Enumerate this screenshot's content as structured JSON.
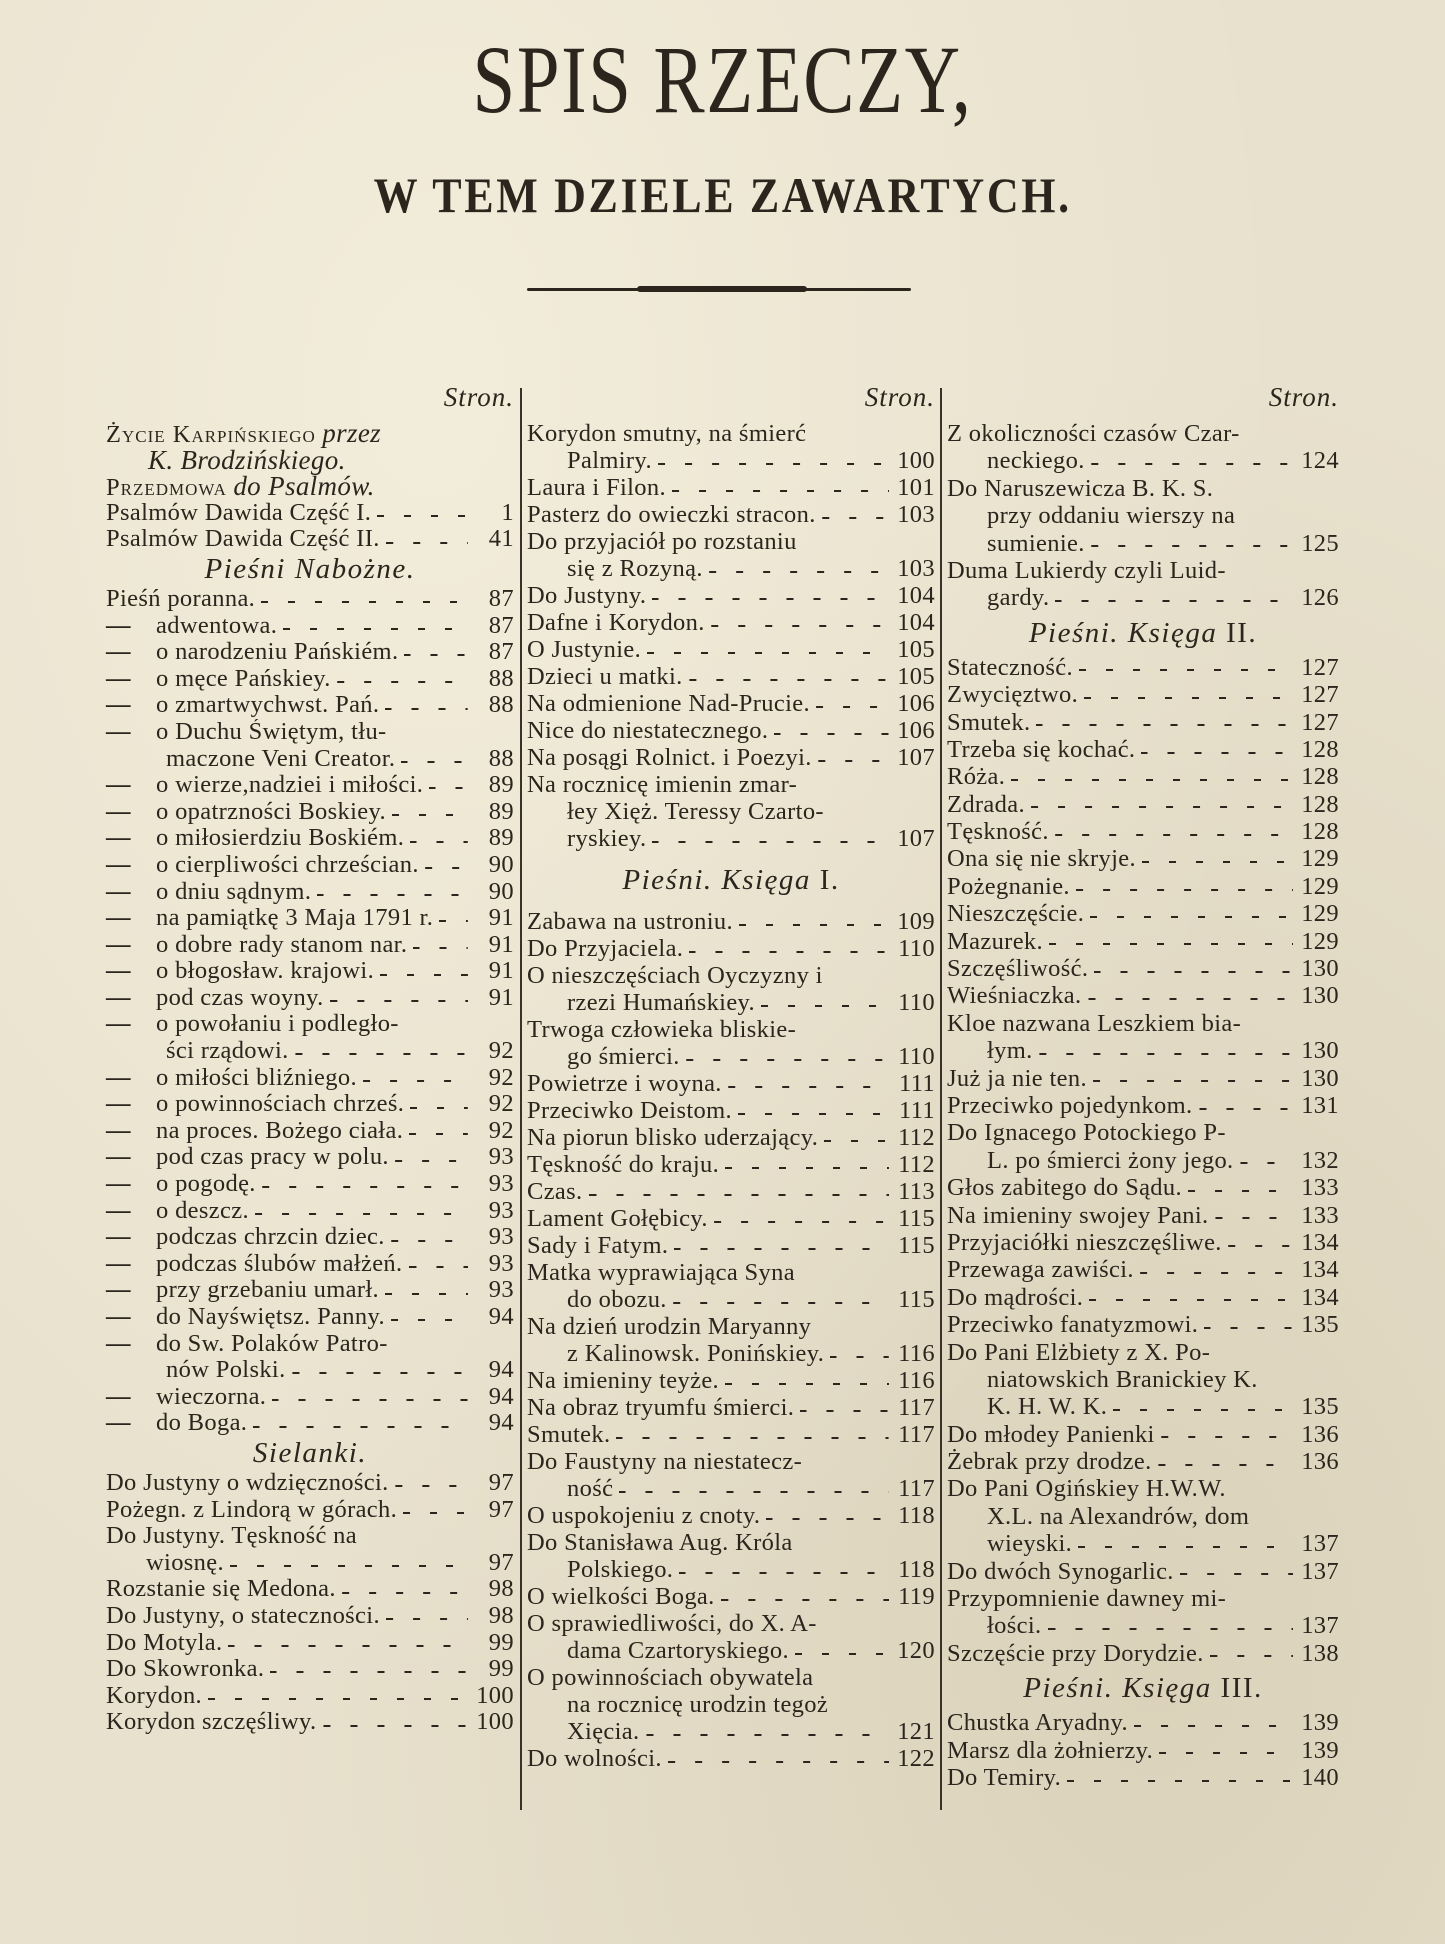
{
  "header": {
    "title": "SPIS RZECZY,",
    "subtitle": "W TEM DZIELE ZAWARTYCH."
  },
  "columns": [
    {
      "page_label": "Stron.",
      "items": [
        {
          "caps": "Życie Karpińskiego",
          "ital": "przez",
          "cont": "K. Brodzińskiego."
        },
        {
          "caps": "Przedmowa",
          "ital": "do Psalmów."
        },
        {
          "lines": [
            "Psalmów Dawida Część I."
          ],
          "page": "1"
        },
        {
          "lines": [
            "Psalmów Dawida Część II."
          ],
          "page": "41"
        },
        {
          "heading": "Pieśni Nabożne."
        },
        {
          "lines": [
            "Pieśń poranna."
          ],
          "page": "87"
        },
        {
          "prefix": "—",
          "lines": [
            "adwentowa."
          ],
          "page": "87"
        },
        {
          "prefix": "—",
          "lines": [
            "o narodzeniu Pańskiém."
          ],
          "page": "87"
        },
        {
          "prefix": "—",
          "lines": [
            "o męce Pańskiey."
          ],
          "page": "88"
        },
        {
          "prefix": "—",
          "lines": [
            "o zmartwychwst. Pań."
          ],
          "page": "88"
        },
        {
          "prefix": "—",
          "lines": [
            "o Duchu Świętym, tłu-",
            "maczone Veni Creator."
          ],
          "page": "88"
        },
        {
          "prefix": "—",
          "lines": [
            "o wierze,nadziei i miłości."
          ],
          "page": "89"
        },
        {
          "prefix": "—",
          "lines": [
            "o opatrzności Boskiey."
          ],
          "page": "89"
        },
        {
          "prefix": "—",
          "lines": [
            "o miłosierdziu Boskiém."
          ],
          "page": "89"
        },
        {
          "prefix": "—",
          "lines": [
            "o cierpliwości chrześcian."
          ],
          "page": "90"
        },
        {
          "prefix": "—",
          "lines": [
            "o dniu sądnym."
          ],
          "page": "90"
        },
        {
          "prefix": "—",
          "lines": [
            "na pamiątkę 3 Maja 1791 r."
          ],
          "page": "91"
        },
        {
          "prefix": "—",
          "lines": [
            "o dobre rady stanom nar."
          ],
          "page": "91"
        },
        {
          "prefix": "—",
          "lines": [
            "o błogosław. krajowi."
          ],
          "page": "91"
        },
        {
          "prefix": "—",
          "lines": [
            "pod czas woyny."
          ],
          "page": "91"
        },
        {
          "prefix": "—",
          "lines": [
            "o powołaniu i podległo-",
            "ści rządowi."
          ],
          "page": "92"
        },
        {
          "prefix": "—",
          "lines": [
            "o miłości bliźniego."
          ],
          "page": "92"
        },
        {
          "prefix": "—",
          "lines": [
            "o powinnościach chrześ."
          ],
          "page": "92"
        },
        {
          "prefix": "—",
          "lines": [
            "na proces. Bożego ciała."
          ],
          "page": "92"
        },
        {
          "prefix": "—",
          "lines": [
            "pod czas pracy w polu."
          ],
          "page": "93"
        },
        {
          "prefix": "—",
          "lines": [
            "o pogodę."
          ],
          "page": "93"
        },
        {
          "prefix": "—",
          "lines": [
            "o deszcz."
          ],
          "page": "93"
        },
        {
          "prefix": "—",
          "lines": [
            "podczas chrzcin dziec."
          ],
          "page": "93"
        },
        {
          "prefix": "—",
          "lines": [
            "podczas ślubów małżeń."
          ],
          "page": "93"
        },
        {
          "prefix": "—",
          "lines": [
            "przy grzebaniu umarł."
          ],
          "page": "93"
        },
        {
          "prefix": "—",
          "lines": [
            "do Nayświętsz. Panny."
          ],
          "page": "94"
        },
        {
          "prefix": "—",
          "lines": [
            "do Sw. Polaków Patro-",
            "nów Polski."
          ],
          "page": "94"
        },
        {
          "prefix": "—",
          "lines": [
            "wieczorna."
          ],
          "page": "94"
        },
        {
          "prefix": "—",
          "lines": [
            "do Boga."
          ],
          "page": "94"
        },
        {
          "heading": "Sielanki."
        },
        {
          "lines": [
            "Do Justyny o wdzięczności."
          ],
          "page": "97"
        },
        {
          "lines": [
            "Pożegn. z Lindorą w górach."
          ],
          "page": "97"
        },
        {
          "lines": [
            "Do Justyny. Tęskność na",
            "wiosnę."
          ],
          "page": "97"
        },
        {
          "lines": [
            "Rozstanie się Medona."
          ],
          "page": "98"
        },
        {
          "lines": [
            "Do Justyny, o stateczności."
          ],
          "page": "98"
        },
        {
          "lines": [
            "Do Motyla."
          ],
          "page": "99"
        },
        {
          "lines": [
            "Do Skowronka."
          ],
          "page": "99"
        },
        {
          "lines": [
            "Korydon."
          ],
          "page": "100"
        },
        {
          "lines": [
            "Korydon szczęśliwy."
          ],
          "page": "100"
        }
      ]
    },
    {
      "page_label": "Stron.",
      "items": [
        {
          "lines": [
            "Korydon smutny, na śmierć",
            "Palmiry."
          ],
          "page": "100"
        },
        {
          "lines": [
            "Laura i Filon."
          ],
          "page": "101"
        },
        {
          "lines": [
            "Pasterz do owieczki stracon."
          ],
          "page": "103"
        },
        {
          "lines": [
            "Do przyjaciół po rozstaniu",
            "się z Rozyną."
          ],
          "page": "103"
        },
        {
          "lines": [
            "Do Justyny."
          ],
          "page": "104"
        },
        {
          "lines": [
            "Dafne i Korydon."
          ],
          "page": "104"
        },
        {
          "lines": [
            "O Justynie."
          ],
          "page": "105"
        },
        {
          "lines": [
            "Dzieci u matki."
          ],
          "page": "105"
        },
        {
          "lines": [
            "Na odmienione Nad-Prucie."
          ],
          "page": "106"
        },
        {
          "lines": [
            "Nice do niestatecznego."
          ],
          "page": "106"
        },
        {
          "lines": [
            "Na posągi Rolnict. i Poezyi."
          ],
          "page": "107"
        },
        {
          "lines": [
            "Na rocznicę imienin zmar-",
            "łey Xięż. Teressy Czarto-",
            "ryskiey."
          ],
          "page": "107"
        },
        {
          "heading": "Pieśni. Księga",
          "roman": "I."
        },
        {
          "lines": [
            "Zabawa na ustroniu."
          ],
          "page": "109"
        },
        {
          "lines": [
            "Do Przyjaciela."
          ],
          "page": "110"
        },
        {
          "lines": [
            "O nieszczęściach Oyczyzny i",
            "rzezi Humańskiey."
          ],
          "page": "110"
        },
        {
          "lines": [
            "Trwoga człowieka bliskie-",
            "go śmierci."
          ],
          "page": "110"
        },
        {
          "lines": [
            "Powietrze i woyna."
          ],
          "page": "111"
        },
        {
          "lines": [
            "Przeciwko Deistom."
          ],
          "page": "111"
        },
        {
          "lines": [
            "Na piorun blisko uderzający."
          ],
          "page": "112"
        },
        {
          "lines": [
            "Tęskność do kraju."
          ],
          "page": "112"
        },
        {
          "lines": [
            "Czas."
          ],
          "page": "113"
        },
        {
          "lines": [
            "Lament Gołębicy."
          ],
          "page": "115"
        },
        {
          "lines": [
            "Sady i Fatym."
          ],
          "page": "115"
        },
        {
          "lines": [
            "Matka wyprawiająca Syna",
            "do obozu."
          ],
          "page": "115"
        },
        {
          "lines": [
            "Na dzień urodzin Maryanny",
            "z Kalinowsk. Ponińskiey."
          ],
          "page": "116"
        },
        {
          "lines": [
            "Na imieniny teyże."
          ],
          "page": "116"
        },
        {
          "lines": [
            "Na obraz tryumfu śmierci."
          ],
          "page": "117"
        },
        {
          "lines": [
            "Smutek."
          ],
          "page": "117"
        },
        {
          "lines": [
            "Do Faustyny na niestatecz-",
            "ność"
          ],
          "page": "117"
        },
        {
          "lines": [
            "O uspokojeniu z cnoty."
          ],
          "page": "118"
        },
        {
          "lines": [
            "Do Stanisława Aug. Króla",
            "Polskiego."
          ],
          "page": "118"
        },
        {
          "lines": [
            "O wielkości Boga."
          ],
          "page": "119"
        },
        {
          "lines": [
            "O sprawiedliwości, do X. A-",
            "dama Czartoryskiego."
          ],
          "page": "120"
        },
        {
          "lines": [
            "O powinnościach obywatela",
            "na rocznicę urodzin tegoż",
            "Xięcia."
          ],
          "page": "121"
        },
        {
          "lines": [
            "Do wolności."
          ],
          "page": "122"
        }
      ]
    },
    {
      "page_label": "Stron.",
      "items": [
        {
          "lines": [
            "Z okoliczności czasów Czar-",
            "neckiego."
          ],
          "page": "124"
        },
        {
          "lines": [
            "Do Naruszewicza B. K. S.",
            "przy oddaniu wierszy na",
            "sumienie."
          ],
          "page": "125"
        },
        {
          "lines": [
            "Duma Lukierdy czyli Luid-",
            "gardy."
          ],
          "page": "126"
        },
        {
          "heading": "Pieśni. Księga",
          "roman": "II."
        },
        {
          "lines": [
            "Stateczność."
          ],
          "page": "127"
        },
        {
          "lines": [
            "Zwycięztwo."
          ],
          "page": "127"
        },
        {
          "lines": [
            "Smutek."
          ],
          "page": "127"
        },
        {
          "lines": [
            "Trzeba się kochać."
          ],
          "page": "128"
        },
        {
          "lines": [
            "Róża."
          ],
          "page": "128"
        },
        {
          "lines": [
            "Zdrada."
          ],
          "page": "128"
        },
        {
          "lines": [
            "Tęskność."
          ],
          "page": "128"
        },
        {
          "lines": [
            "Ona się nie skryje."
          ],
          "page": "129"
        },
        {
          "lines": [
            "Pożegnanie."
          ],
          "page": "129"
        },
        {
          "lines": [
            "Nieszczęście."
          ],
          "page": "129"
        },
        {
          "lines": [
            "Mazurek."
          ],
          "page": "129"
        },
        {
          "lines": [
            "Szczęśliwość."
          ],
          "page": "130"
        },
        {
          "lines": [
            "Wieśniaczka."
          ],
          "page": "130"
        },
        {
          "lines": [
            "Kloe nazwana Leszkiem bia-",
            "łym."
          ],
          "page": "130"
        },
        {
          "lines": [
            "Już ja nie ten."
          ],
          "page": "130"
        },
        {
          "lines": [
            "Przeciwko pojedynkom."
          ],
          "page": "131"
        },
        {
          "lines": [
            "Do Ignacego Potockiego P-",
            "L. po śmierci żony jego."
          ],
          "page": "132"
        },
        {
          "lines": [
            "Głos zabitego do Sądu."
          ],
          "page": "133"
        },
        {
          "lines": [
            "Na imieniny swojey Pani."
          ],
          "page": "133"
        },
        {
          "lines": [
            "Przyjaciółki nieszczęśliwe."
          ],
          "page": "134"
        },
        {
          "lines": [
            "Przewaga zawiści."
          ],
          "page": "134"
        },
        {
          "lines": [
            "Do mądrości."
          ],
          "page": "134"
        },
        {
          "lines": [
            "Przeciwko fanatyzmowi."
          ],
          "page": "135"
        },
        {
          "lines": [
            "Do Pani Elżbiety z X. Po-",
            "niatowskich Branickiey K.",
            "K. H. W. K."
          ],
          "page": "135"
        },
        {
          "lines": [
            "Do młodey Panienki"
          ],
          "page": "136"
        },
        {
          "lines": [
            "Żebrak przy drodze."
          ],
          "page": "136"
        },
        {
          "lines": [
            "Do Pani Ogińskiey H.W.W.",
            "X.L. na Alexandrów, dom",
            "wieyski."
          ],
          "page": "137"
        },
        {
          "lines": [
            "Do dwóch Synogarlic."
          ],
          "page": "137"
        },
        {
          "lines": [
            "Przypomnienie dawney mi-",
            "łości."
          ],
          "page": "137"
        },
        {
          "lines": [
            "Szczęście przy Dorydzie."
          ],
          "page": "138"
        },
        {
          "heading": "Pieśni. Księga",
          "roman": "III."
        },
        {
          "lines": [
            "Chustka Aryadny."
          ],
          "page": "139"
        },
        {
          "lines": [
            "Marsz dla żołnierzy."
          ],
          "page": "139"
        },
        {
          "lines": [
            "Do Temiry."
          ],
          "page": "140"
        }
      ]
    }
  ],
  "colors": {
    "paper": "#e8e1cd",
    "ink": "#2b251d"
  }
}
